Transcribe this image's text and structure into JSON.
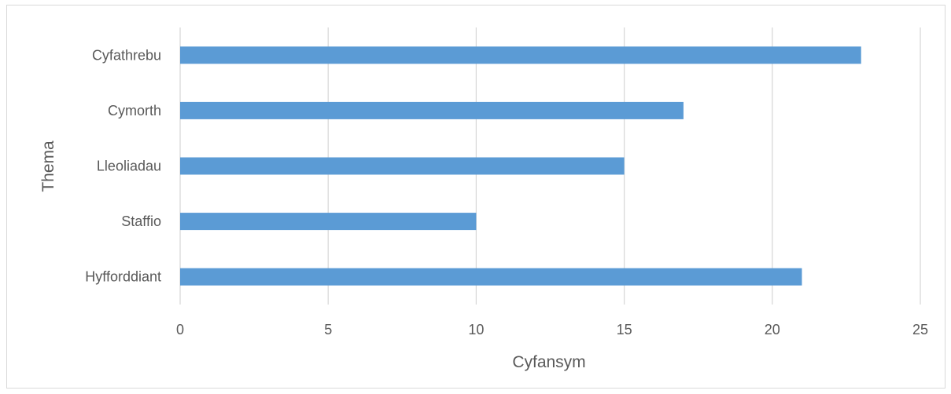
{
  "chart_data": {
    "type": "bar",
    "orientation": "horizontal",
    "categories": [
      "Cyfathrebu",
      "Cymorth",
      "Lleoliadau",
      "Staffio",
      "Hyfforddiant"
    ],
    "values": [
      23,
      17,
      15,
      10,
      21
    ],
    "xlabel": "Cyfansym",
    "ylabel": "Thema",
    "xlim": [
      0,
      25
    ],
    "xticks": [
      0,
      5,
      10,
      15,
      20,
      25
    ],
    "grid": true,
    "legend": "none",
    "bar_color": "#5b9bd5",
    "grid_color": "#d9d9d9",
    "text_color": "#595959"
  }
}
